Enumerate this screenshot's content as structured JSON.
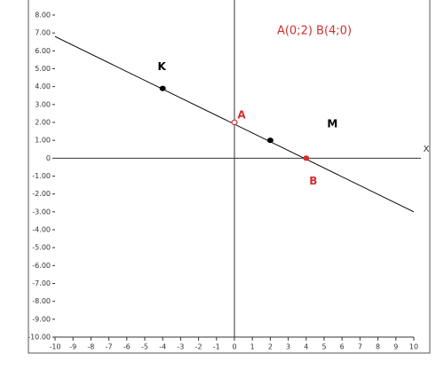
{
  "chart_data": {
    "type": "line",
    "annotation": "A(0;2)  B(4;0)",
    "x_label": "X",
    "xlim": [
      -10,
      10
    ],
    "ylim": [
      -10,
      8
    ],
    "xticks": [
      -10,
      -9,
      -8,
      -7,
      -6,
      -5,
      -4,
      -3,
      -2,
      -1,
      0,
      1,
      2,
      3,
      4,
      5,
      6,
      7,
      8,
      9,
      10
    ],
    "yticks": [
      {
        "value": 8,
        "label": "8.00"
      },
      {
        "value": 7,
        "label": "7.00"
      },
      {
        "value": 6,
        "label": "6.00"
      },
      {
        "value": 5,
        "label": "5.00"
      },
      {
        "value": 4,
        "label": "4.00"
      },
      {
        "value": 3,
        "label": "3.00"
      },
      {
        "value": 2,
        "label": "2.00"
      },
      {
        "value": 1,
        "label": "1.00"
      },
      {
        "value": 0,
        "label": "0"
      },
      {
        "value": -1,
        "label": "-1.00"
      },
      {
        "value": -2,
        "label": "-2.00"
      },
      {
        "value": -3,
        "label": "-3.00"
      },
      {
        "value": -4,
        "label": "-4.00"
      },
      {
        "value": -5,
        "label": "-5.00"
      },
      {
        "value": -6,
        "label": "-6.00"
      },
      {
        "value": -7,
        "label": "-7.00"
      },
      {
        "value": -8,
        "label": "-8.00"
      },
      {
        "value": -9,
        "label": "-9.00"
      },
      {
        "value": -10,
        "label": "-10.00"
      }
    ],
    "line": {
      "x": [
        -10,
        10
      ],
      "values": [
        6.8,
        -3
      ],
      "color": "#000000"
    },
    "points": [
      {
        "label": "K",
        "x": -4,
        "y": 3.9,
        "color": "#000000",
        "label_color": "#000000",
        "hollow": false
      },
      {
        "label": "A",
        "x": 0,
        "y": 2,
        "color": "#d32f2f",
        "label_color": "#d32f2f",
        "hollow": true
      },
      {
        "label": "M",
        "x": 2,
        "y": 1,
        "color": "#000000",
        "label_color": "#000000",
        "hollow": false
      },
      {
        "label": "B",
        "x": 4,
        "y": 0,
        "color": "#d32f2f",
        "label_color": "#d32f2f",
        "hollow": false
      }
    ]
  }
}
